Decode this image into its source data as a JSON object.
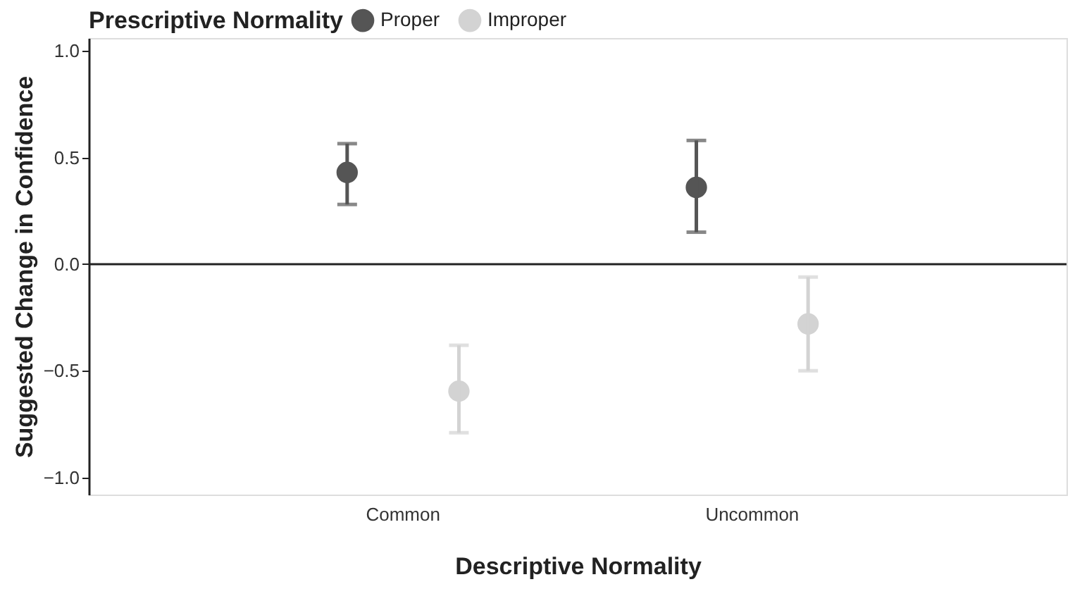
{
  "chart_data": {
    "type": "scatter",
    "xlabel": "Descriptive Normality",
    "ylabel": "Suggested Change in Confidence",
    "legend_title": "Prescriptive Normality",
    "legend": "top",
    "grid": false,
    "marker": "circle",
    "categories": [
      "Common",
      "Uncommon"
    ],
    "ylim": [
      -1.08,
      1.06
    ],
    "yticks": [
      {
        "value": -1,
        "label": "−1.0"
      },
      {
        "value": -0.5,
        "label": "−0.5"
      },
      {
        "value": 0,
        "label": "0.0"
      },
      {
        "value": 0.5,
        "label": "0.5"
      },
      {
        "value": 1,
        "label": "1.0"
      }
    ],
    "series": [
      {
        "name": "Proper",
        "color": "#555555",
        "values": [
          0.43,
          0.36
        ],
        "errors": [
          [
            0.28,
            0.565
          ],
          [
            0.15,
            0.58
          ]
        ]
      },
      {
        "name": "Improper",
        "color": "#d3d3d3",
        "values": [
          -0.595,
          -0.28
        ],
        "errors": [
          [
            -0.79,
            -0.38
          ],
          [
            -0.5,
            -0.06
          ]
        ]
      }
    ],
    "ref_lines": [
      {
        "axis": "y",
        "value": 0,
        "color": "#222222"
      }
    ]
  }
}
